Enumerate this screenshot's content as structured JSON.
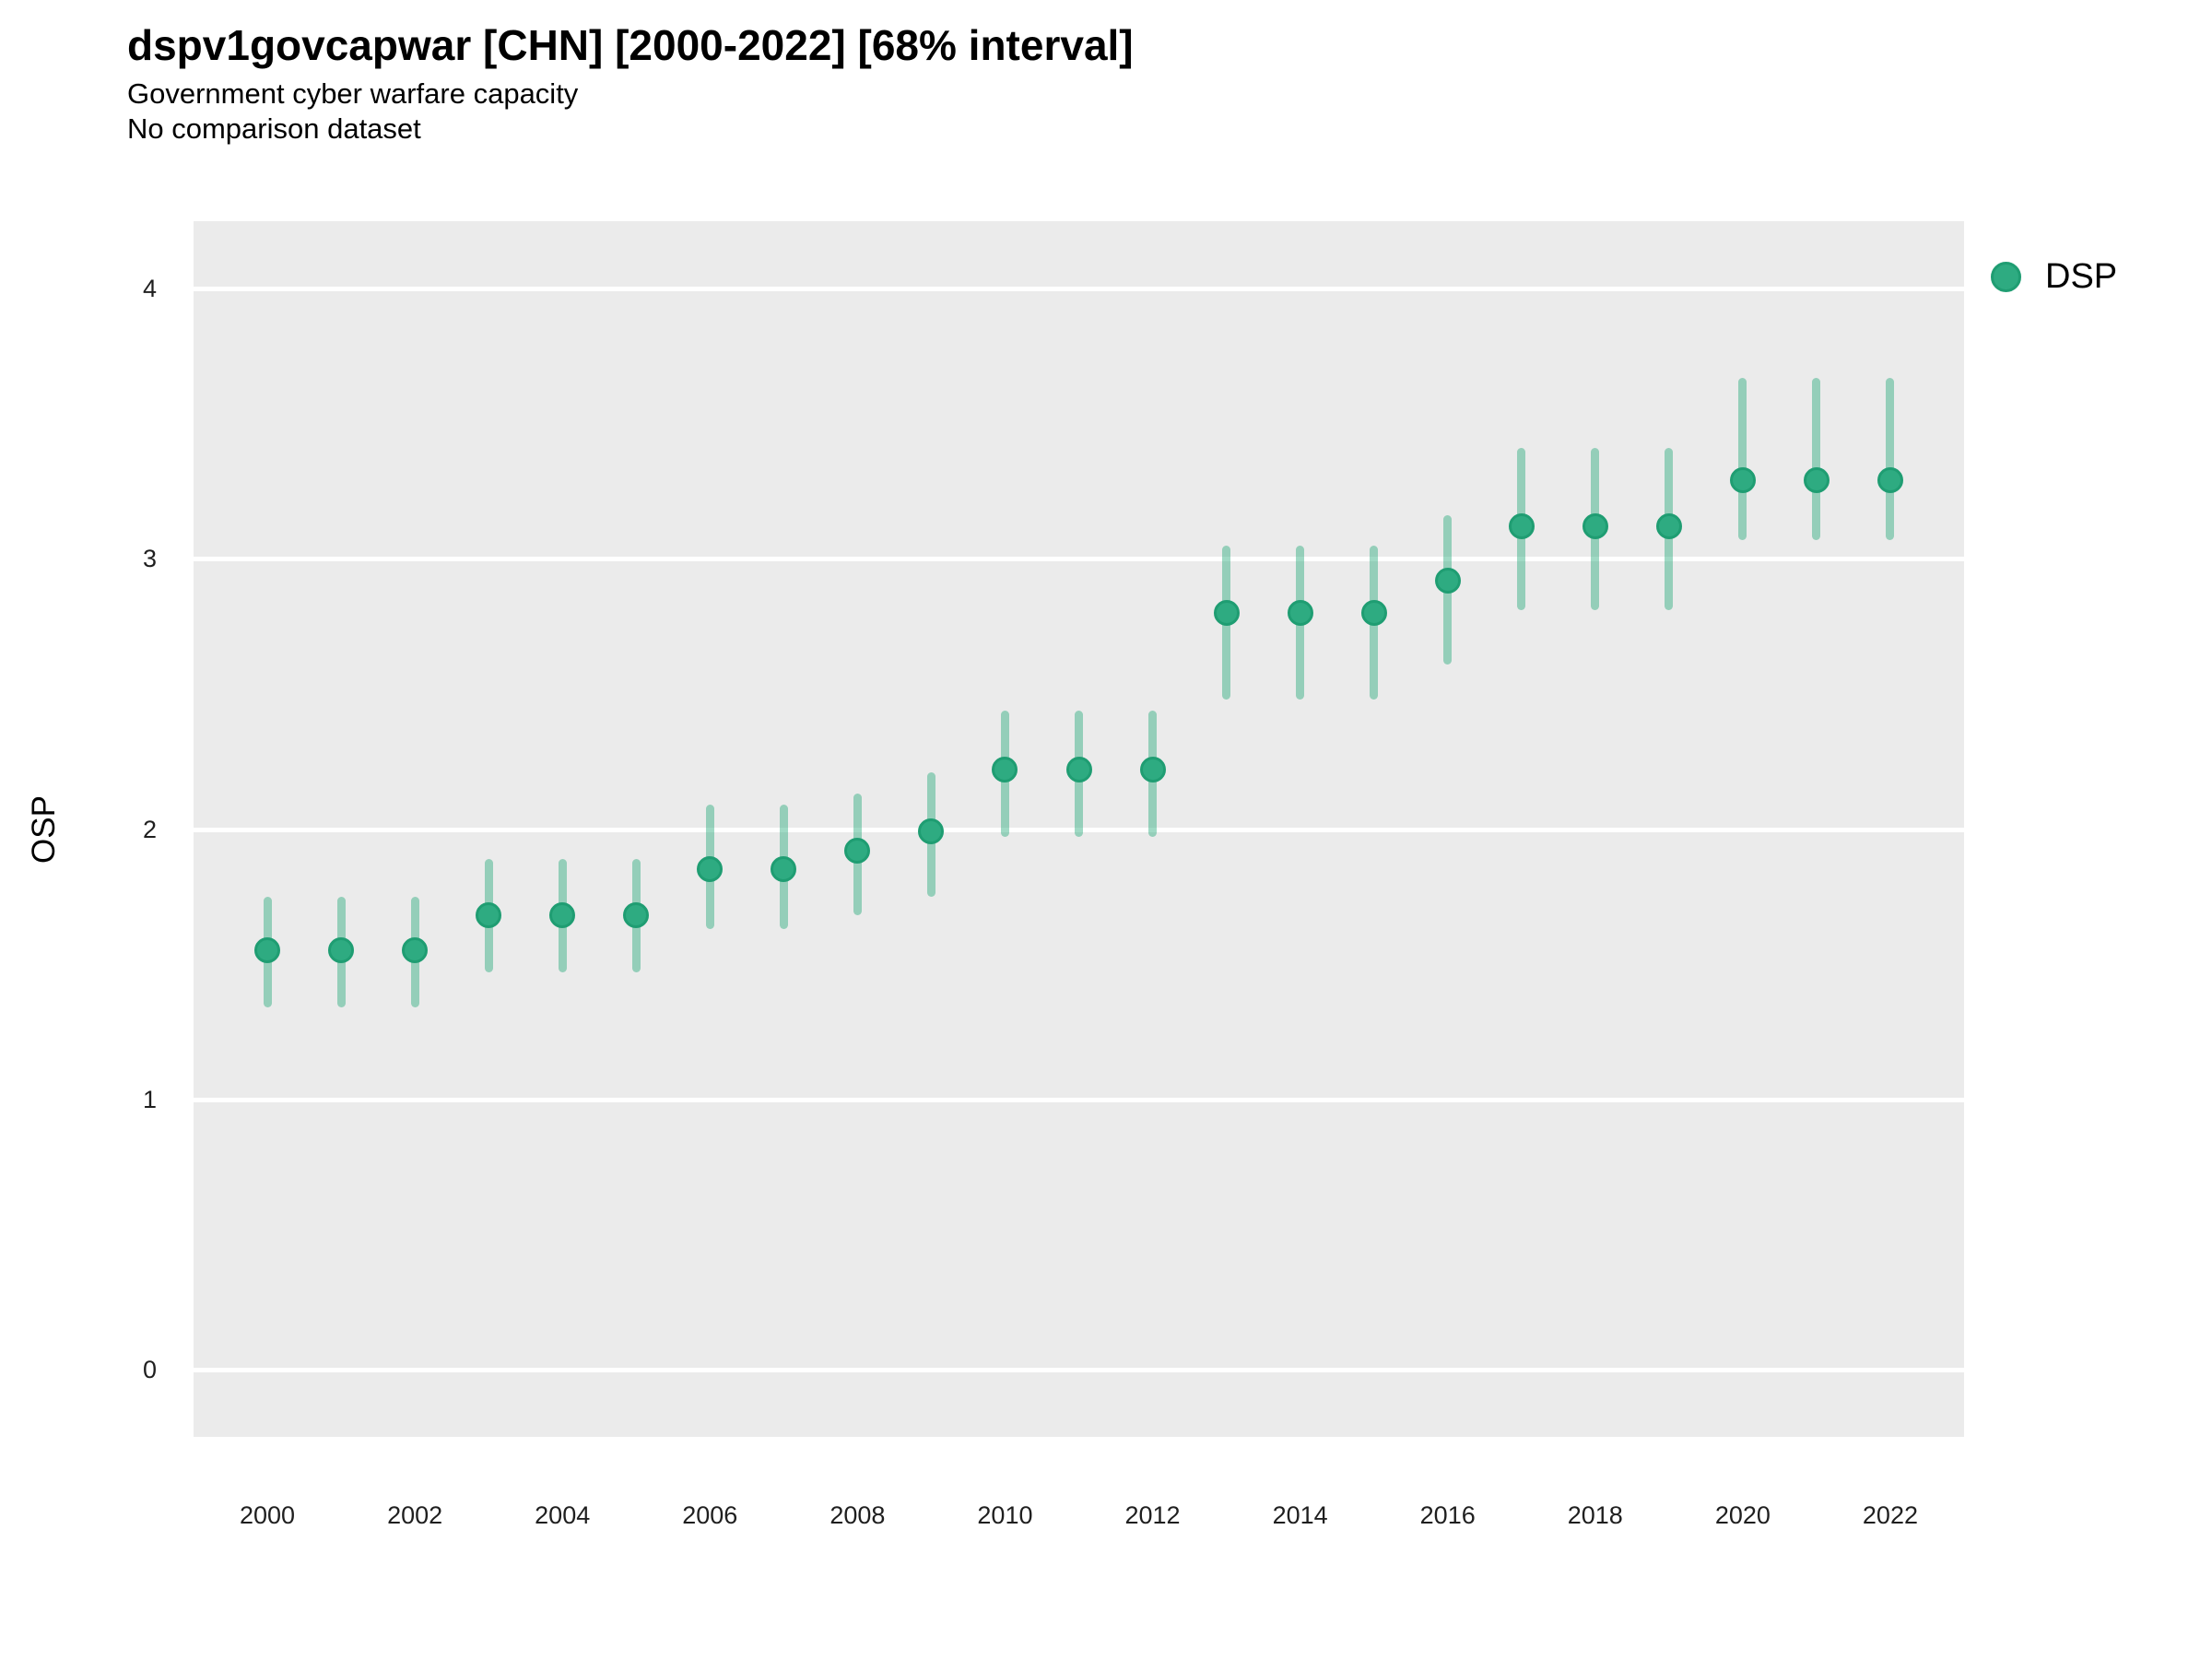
{
  "header": {
    "title": "dspv1govcapwar [CHN] [2000-2022] [68% interval]",
    "subtitle1": "Government cyber warfare capacity",
    "subtitle2": "No comparison dataset"
  },
  "legend": {
    "label": "DSP"
  },
  "axes": {
    "y_label": "OSP",
    "y_ticks": [
      0,
      1,
      2,
      3,
      4
    ],
    "x_ticks": [
      2000,
      2002,
      2004,
      2006,
      2008,
      2010,
      2012,
      2014,
      2016,
      2018,
      2020,
      2022
    ]
  },
  "colors": {
    "point_fill": "#2eab81",
    "point_border": "#1f9d72",
    "interval_bar": "rgba(42,170,125,0.45)",
    "panel_bg": "#ebebeb",
    "gridline": "#ffffff",
    "tick_text": "#1f1f1f"
  },
  "chart_data": {
    "type": "scatter",
    "title": "dspv1govcapwar [CHN] [2000-2022] [68% interval]",
    "subtitle": "Government cyber warfare capacity",
    "note": "No comparison dataset",
    "interval": "68%",
    "xlabel": "",
    "ylabel": "OSP",
    "xlim": [
      1999,
      2023
    ],
    "ylim": [
      -0.25,
      4.25
    ],
    "grid": "horizontal-major-only",
    "legend_position": "right",
    "series": [
      {
        "name": "DSP",
        "x": [
          2000,
          2001,
          2002,
          2003,
          2004,
          2005,
          2006,
          2007,
          2008,
          2009,
          2010,
          2011,
          2012,
          2013,
          2014,
          2015,
          2016,
          2017,
          2018,
          2019,
          2020,
          2021,
          2022
        ],
        "y": [
          1.55,
          1.55,
          1.55,
          1.68,
          1.68,
          1.68,
          1.85,
          1.85,
          1.92,
          1.99,
          2.22,
          2.22,
          2.22,
          2.8,
          2.8,
          2.8,
          2.92,
          3.12,
          3.12,
          3.12,
          3.29,
          3.29,
          3.29
        ],
        "y_lo": [
          1.34,
          1.34,
          1.34,
          1.47,
          1.47,
          1.47,
          1.63,
          1.63,
          1.68,
          1.75,
          1.97,
          1.97,
          1.97,
          2.48,
          2.48,
          2.48,
          2.61,
          2.81,
          2.81,
          2.81,
          3.07,
          3.07,
          3.07
        ],
        "y_hi": [
          1.75,
          1.75,
          1.75,
          1.89,
          1.89,
          1.89,
          2.09,
          2.09,
          2.13,
          2.21,
          2.44,
          2.44,
          2.44,
          3.05,
          3.05,
          3.05,
          3.16,
          3.41,
          3.41,
          3.41,
          3.67,
          3.67,
          3.67
        ]
      }
    ]
  }
}
